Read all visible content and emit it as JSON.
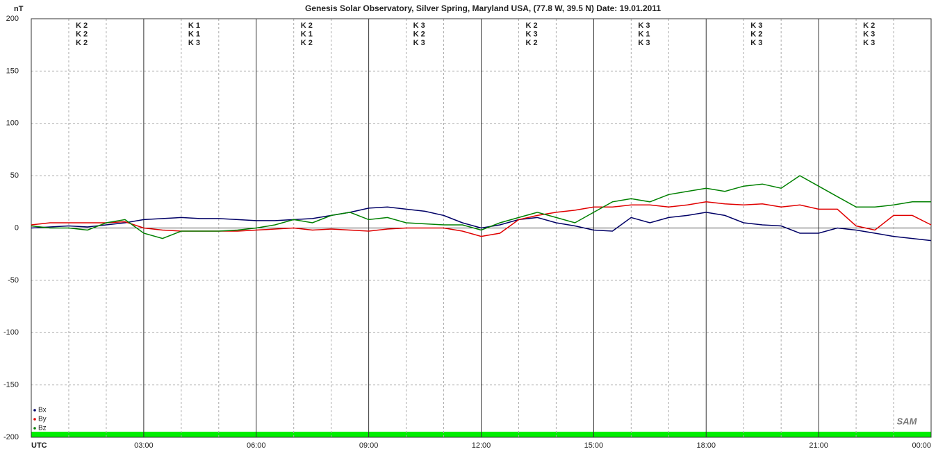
{
  "chart_data": {
    "type": "line",
    "title": "Genesis Solar Observatory, Silver Spring, Maryland USA, (77.8 W, 39.5 N)  Date: 19.01.2011",
    "y_label": "nT",
    "logo": "SAM",
    "x": [
      0,
      0.5,
      1,
      1.5,
      2,
      2.5,
      3,
      3.5,
      4,
      4.5,
      5,
      5.5,
      6,
      6.5,
      7,
      7.5,
      8,
      8.5,
      9,
      9.5,
      10,
      10.5,
      11,
      11.5,
      12,
      12.5,
      13,
      13.5,
      14,
      14.5,
      15,
      15.5,
      16,
      16.5,
      17,
      17.5,
      18,
      18.5,
      19,
      19.5,
      20,
      20.5,
      21,
      21.5,
      22,
      22.5,
      23,
      23.5,
      24
    ],
    "series": [
      {
        "name": "Bx",
        "color": "#000066",
        "values": [
          0,
          1,
          2,
          1,
          3,
          5,
          8,
          9,
          10,
          9,
          9,
          8,
          7,
          7,
          8,
          9,
          12,
          15,
          19,
          20,
          18,
          16,
          12,
          5,
          0,
          3,
          8,
          10,
          5,
          2,
          -2,
          -3,
          10,
          5,
          10,
          12,
          15,
          12,
          5,
          3,
          2,
          -5,
          -5,
          0,
          -2,
          -5,
          -8,
          -10,
          -12
        ],
        "k_indices": [
          2,
          1,
          2,
          3,
          2,
          3,
          3,
          2
        ],
        "k_index_labels": [
          "K 2",
          "K 1",
          "K 2",
          "K 3",
          "K 2",
          "K 3",
          "K 3",
          "K 2"
        ]
      },
      {
        "name": "By",
        "color": "#e00000",
        "values": [
          3,
          5,
          5,
          5,
          5,
          6,
          0,
          -2,
          -3,
          -3,
          -3,
          -3,
          -2,
          -1,
          0,
          -2,
          -1,
          -2,
          -3,
          -1,
          0,
          0,
          0,
          -3,
          -8,
          -5,
          8,
          12,
          15,
          17,
          20,
          20,
          22,
          22,
          20,
          22,
          25,
          23,
          22,
          23,
          20,
          22,
          18,
          18,
          2,
          -2,
          12,
          12,
          3
        ],
        "k_indices": [
          2,
          1,
          1,
          2,
          3,
          1,
          2,
          3
        ],
        "k_index_labels": [
          "K 2",
          "K 1",
          "K 1",
          "K 2",
          "K 3",
          "K 1",
          "K 2",
          "K 3"
        ]
      },
      {
        "name": "Bz",
        "color": "#008000",
        "values": [
          2,
          0,
          0,
          -2,
          5,
          8,
          -5,
          -10,
          -3,
          -3,
          -3,
          -2,
          0,
          3,
          8,
          5,
          12,
          15,
          8,
          10,
          5,
          4,
          3,
          3,
          -2,
          5,
          10,
          15,
          10,
          5,
          15,
          25,
          28,
          25,
          32,
          35,
          38,
          35,
          40,
          42,
          38,
          50,
          40,
          30,
          20,
          20,
          22,
          25,
          25
        ],
        "k_indices": [
          2,
          3,
          2,
          3,
          2,
          3,
          3,
          3
        ],
        "k_index_labels": [
          "K 2",
          "K 3",
          "K 2",
          "K 3",
          "K 2",
          "K 3",
          "K 3",
          "K 3"
        ]
      }
    ],
    "xlim": [
      0,
      24
    ],
    "xticks": [
      {
        "value": 0,
        "label": "UTC"
      },
      {
        "value": 3,
        "label": "03:00"
      },
      {
        "value": 6,
        "label": "06:00"
      },
      {
        "value": 9,
        "label": "09:00"
      },
      {
        "value": 12,
        "label": "12:00"
      },
      {
        "value": 15,
        "label": "15:00"
      },
      {
        "value": 18,
        "label": "18:00"
      },
      {
        "value": 21,
        "label": "21:00"
      },
      {
        "value": 24,
        "label": "00:00"
      }
    ],
    "x_minor_ticks": [
      1,
      2,
      4,
      5,
      7,
      8,
      10,
      11,
      13,
      14,
      16,
      17,
      19,
      20,
      22,
      23
    ],
    "ylim": [
      -200,
      200
    ],
    "yticks": [
      200,
      150,
      100,
      50,
      0,
      -50,
      -100,
      -150,
      -200
    ],
    "grid": true
  }
}
